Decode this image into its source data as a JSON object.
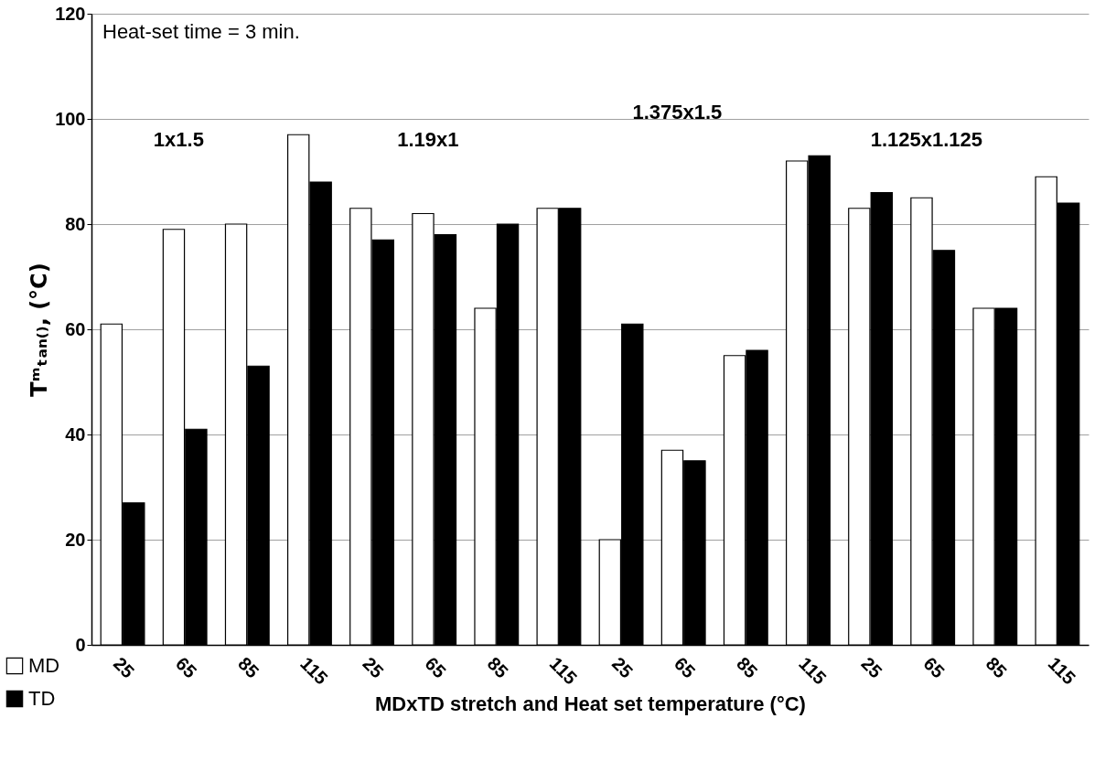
{
  "chart_data": {
    "type": "bar",
    "ylabel": "Tᵐₜₐₙ₍₎, (°C)",
    "xlabel": "MDxTD stretch and Heat set temperature (°C)",
    "categories": [
      "25",
      "65",
      "85",
      "115",
      "25",
      "65",
      "85",
      "115",
      "25",
      "65",
      "85",
      "115",
      "25",
      "65",
      "85",
      "115"
    ],
    "series": [
      {
        "name": "MD",
        "color": "#ffffff",
        "values": [
          61,
          79,
          80,
          97,
          83,
          82,
          64,
          83,
          20,
          37,
          55,
          92,
          83,
          85,
          64,
          89
        ]
      },
      {
        "name": "TD",
        "color": "#000000",
        "values": [
          27,
          41,
          53,
          88,
          77,
          78,
          80,
          83,
          61,
          35,
          56,
          93,
          86,
          75,
          64,
          84
        ]
      }
    ],
    "ylim": [
      0,
      120
    ],
    "yticks": [
      0,
      20,
      40,
      60,
      80,
      100,
      120
    ],
    "grid": "y",
    "legend": "bottom left",
    "annotations": [
      "Heat-set time = 3 min.",
      "1x1.5",
      "1.19x1",
      "1.375x1.5",
      "1.125x1.125"
    ]
  }
}
